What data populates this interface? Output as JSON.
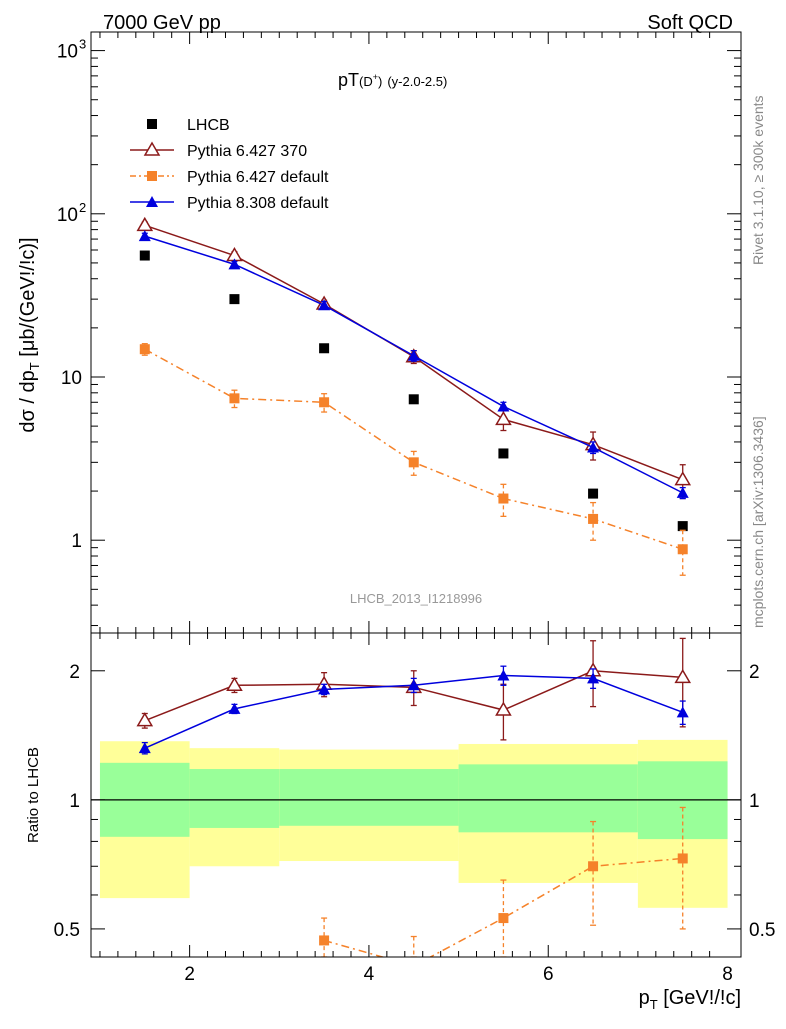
{
  "header": {
    "left": "7000 GeV pp",
    "right": "Soft QCD"
  },
  "side_text": {
    "rivet": "Rivet 3.1.10, ≥ 300k events",
    "mcplots": "mcplots.cern.ch [arXiv:1306.3436]"
  },
  "chart_data": [
    {
      "type": "scatter",
      "title_main": "pT",
      "title_sup": "(D",
      "title_sup_plus": "+",
      "title_sup_close": ")",
      "title_sub": "(y-2.0-2.5)",
      "watermark": "LHCB_2013_I1218996",
      "ylabel": "dσ / dp_T [μb/(GeV!/!c)]",
      "yscale": "log",
      "xlim": [
        0.9,
        8.15
      ],
      "ylim": [
        0.27,
        1300
      ],
      "yticks_labels": [
        {
          "value": 1,
          "label": "1"
        },
        {
          "value": 10,
          "label": "10"
        },
        {
          "value": 100,
          "label": "10",
          "sup": "2"
        },
        {
          "value": 1000,
          "label": "10",
          "sup": "3"
        }
      ],
      "legend": {
        "placement": "top-left"
      },
      "series": [
        {
          "name": "LHCB",
          "color": "#000000",
          "marker": "square",
          "line": "none",
          "x": [
            1.5,
            2.5,
            3.5,
            4.5,
            5.5,
            6.5,
            7.5
          ],
          "y": [
            55.5,
            30.0,
            15.0,
            7.3,
            3.4,
            1.93,
            1.22
          ],
          "yerr": [
            0,
            0,
            0,
            0,
            0,
            0,
            0
          ]
        },
        {
          "name": "Pythia 6.427 370",
          "color": "#8b1a1a",
          "marker": "open-triangle",
          "line": "solid",
          "x": [
            1.5,
            2.5,
            3.5,
            4.5,
            5.5,
            6.5,
            7.5
          ],
          "y": [
            85,
            55.5,
            28,
            13.3,
            5.5,
            3.85,
            2.35
          ],
          "yerr": [
            4,
            3,
            1.5,
            1.2,
            0.8,
            0.75,
            0.55
          ]
        },
        {
          "name": "Pythia 6.427 default",
          "color": "#f5822a",
          "marker": "square",
          "line": "dashdot",
          "x": [
            1.5,
            2.5,
            3.5,
            4.5,
            5.5,
            6.5,
            7.5
          ],
          "y": [
            14.8,
            7.4,
            7.0,
            3.0,
            1.8,
            1.35,
            0.88
          ],
          "yerr": [
            1.2,
            0.9,
            0.9,
            0.5,
            0.4,
            0.35,
            0.27
          ]
        },
        {
          "name": "Pythia 8.308 default",
          "color": "#0000dd",
          "marker": "triangle",
          "line": "solid",
          "x": [
            1.5,
            2.5,
            3.5,
            4.5,
            5.5,
            6.5,
            7.5
          ],
          "y": [
            73,
            49,
            27.5,
            13.5,
            6.6,
            3.7,
            1.95
          ],
          "yerr": [
            3,
            2,
            1.5,
            1,
            0.4,
            0.3,
            0.15
          ]
        }
      ]
    },
    {
      "type": "scatter",
      "ylabel": "Ratio to LHCB",
      "xlabel_main": "p",
      "xlabel_sub": "T",
      "xlabel_unit": " [GeV!/!c]",
      "yscale": "log",
      "xlim": [
        0.9,
        8.15
      ],
      "ylim": [
        0.43,
        2.45
      ],
      "xticks": [
        2,
        4,
        6,
        8
      ],
      "yticks": [
        0.5,
        1,
        2
      ],
      "bands": {
        "bins": [
          [
            1,
            2
          ],
          [
            2,
            3
          ],
          [
            3,
            5
          ],
          [
            5,
            7
          ],
          [
            7,
            8
          ]
        ],
        "stat_low": [
          0.82,
          0.86,
          0.87,
          0.84,
          0.81
        ],
        "stat_high": [
          1.22,
          1.18,
          1.18,
          1.21,
          1.23
        ],
        "total_low": [
          0.59,
          0.7,
          0.72,
          0.64,
          0.56
        ],
        "total_high": [
          1.37,
          1.32,
          1.31,
          1.35,
          1.38
        ],
        "stat_color": "#99ff99",
        "total_color": "#ffff99"
      },
      "series": [
        {
          "name": "Pythia 6.427 370",
          "color": "#8b1a1a",
          "marker": "open-triangle",
          "line": "solid",
          "x": [
            1.5,
            2.5,
            3.5,
            4.5,
            5.5,
            6.5,
            7.5
          ],
          "y": [
            1.53,
            1.85,
            1.86,
            1.83,
            1.62,
            2.0,
            1.93
          ],
          "yerr": [
            0.06,
            0.07,
            0.12,
            0.17,
            0.24,
            0.35,
            0.45
          ]
        },
        {
          "name": "Pythia 6.427 default",
          "color": "#f5822a",
          "marker": "square",
          "line": "dashdot",
          "x": [
            3.5,
            4.5,
            5.5,
            6.5,
            7.5
          ],
          "y": [
            0.47,
            0.41,
            0.53,
            0.7,
            0.73
          ],
          "yerr": [
            0.06,
            0.07,
            0.12,
            0.19,
            0.23
          ]
        },
        {
          "name": "Pythia 8.308 default",
          "color": "#0000dd",
          "marker": "triangle",
          "line": "solid",
          "x": [
            1.5,
            2.5,
            3.5,
            4.5,
            5.5,
            6.5,
            7.5
          ],
          "y": [
            1.32,
            1.63,
            1.81,
            1.85,
            1.95,
            1.92,
            1.6
          ],
          "yerr": [
            0.04,
            0.04,
            0.05,
            0.07,
            0.1,
            0.1,
            0.1
          ]
        }
      ]
    }
  ]
}
